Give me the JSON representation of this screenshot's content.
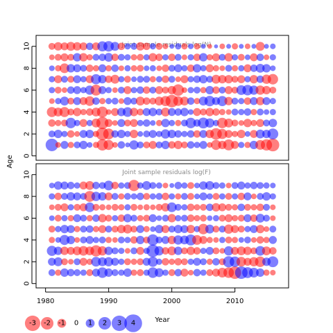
{
  "chart_data": {
    "type": "scatter",
    "style": "bubble",
    "ylabel": "Age",
    "xlabel": "Year",
    "x_ticks": [
      1980,
      1990,
      2000,
      2010
    ],
    "y_ticks": [
      0,
      2,
      4,
      6,
      8,
      10
    ],
    "colors": {
      "positive": "#0000ff",
      "negative": "#ff0000"
    },
    "panels": [
      {
        "title": "Joint sample residuals log(N)",
        "years": [
          1981,
          2016
        ],
        "ages": [
          1,
          10
        ],
        "xlim": [
          1978.5,
          2018.5
        ],
        "ylim": [
          -0.4,
          11
        ],
        "description_of_values": "residual per year (rows=age 1..10, columns=year 1981..2016); sign gives colour, magnitude gives size",
        "residuals": [
          [
            2.0,
            -0.4,
            0.8,
            -0.5,
            0.6,
            0.9,
            0.4,
            -0.5,
            -1.6,
            -1.3,
            -0.4,
            0.7,
            0.3,
            1.1,
            0.6,
            -0.6,
            -0.8,
            0.6,
            0.9,
            -0.7,
            -0.9,
            -0.6,
            0.7,
            0.5,
            0.8,
            -0.4,
            -1.3,
            -0.9,
            -1.5,
            -0.8,
            0.5,
            -0.5,
            0.9,
            -1.2,
            -1.6,
            -2.1
          ],
          [
            0.6,
            0.9,
            0.5,
            -0.7,
            -0.4,
            0.8,
            0.9,
            -0.5,
            -2.0,
            -1.5,
            0.7,
            0.9,
            0.5,
            -0.9,
            0.4,
            0.6,
            0.8,
            0.5,
            1.1,
            0.9,
            0.7,
            0.5,
            0.7,
            -0.7,
            0.8,
            -0.9,
            -1.7,
            -1.3,
            -0.8,
            -0.5,
            -0.9,
            0.4,
            -0.8,
            1.0,
            0.9,
            1.5
          ],
          [
            -0.7,
            -0.5,
            -0.6,
            1.4,
            0.5,
            -0.8,
            0.5,
            -1.0,
            -1.9,
            -0.8,
            -0.4,
            0.8,
            -0.6,
            -0.8,
            0.5,
            0.7,
            0.4,
            -0.5,
            0.9,
            0.5,
            -0.5,
            0.6,
            1.4,
            0.7,
            1.5,
            1.1,
            0.5,
            -1.4,
            -1.0,
            -0.6,
            -0.4,
            -0.9,
            -0.5,
            -0.8,
            0.6,
            0.9
          ],
          [
            -1.3,
            -1.0,
            -1.3,
            -0.6,
            -0.9,
            -0.5,
            -0.7,
            -1.0,
            -1.5,
            -0.4,
            -0.8,
            0.9,
            1.2,
            -0.9,
            -0.6,
            0.8,
            0.9,
            0.6,
            -1.0,
            0.8,
            0.7,
            0.9,
            0.4,
            -0.8,
            -0.6,
            -0.9,
            -0.7,
            -0.5,
            -0.4,
            0.6,
            0.5,
            0.7,
            -0.5,
            0.6,
            0.4,
            0.5
          ],
          [
            -0.4,
            0.5,
            1.0,
            -0.6,
            0.8,
            -0.8,
            -1.2,
            0.7,
            -0.5,
            0.5,
            0.6,
            -0.4,
            0.8,
            0.6,
            -1.0,
            -0.7,
            -0.6,
            -1.0,
            -1.3,
            -2.0,
            -1.2,
            -1.0,
            0.7,
            -0.5,
            1.0,
            1.4,
            0.8,
            1.3,
            -0.9,
            0.6,
            0.5,
            -0.7,
            0.8,
            -0.9,
            0.8,
            0.5
          ],
          [
            0.5,
            -0.6,
            -0.4,
            0.7,
            0.8,
            0.5,
            1.1,
            -1.5,
            0.8,
            0.5,
            -0.4,
            0.6,
            -0.8,
            0.5,
            0.7,
            -0.7,
            0.6,
            -0.8,
            -0.6,
            -0.9,
            -1.7,
            -0.4,
            0.5,
            0.6,
            -0.5,
            0.9,
            -0.7,
            0.6,
            -0.8,
            -0.6,
            1.2,
            1.4,
            1.1,
            -1.1,
            -0.9,
            -0.6
          ],
          [
            0.5,
            -0.8,
            0.6,
            -0.6,
            0.8,
            0.5,
            -0.8,
            1.3,
            0.9,
            -0.7,
            -1.0,
            0.5,
            -0.6,
            0.4,
            0.6,
            0.6,
            -0.5,
            0.5,
            -0.7,
            0.6,
            -0.4,
            -0.8,
            0.5,
            0.7,
            0.9,
            0.6,
            -1.0,
            -0.9,
            -0.9,
            -0.6,
            -0.8,
            0.5,
            -0.9,
            0.7,
            -1.1,
            -1.4
          ],
          [
            0.4,
            -0.5,
            -1.2,
            0.9,
            0.8,
            0.6,
            -0.7,
            -0.5,
            0.8,
            -0.5,
            0.7,
            -0.4,
            0.5,
            -0.5,
            -0.6,
            0.4,
            0.5,
            -0.4,
            -0.7,
            0.6,
            0.8,
            0.5,
            -0.7,
            0.9,
            0.5,
            -0.8,
            -0.5,
            -0.4,
            0.6,
            -0.5,
            0.5,
            -0.8,
            0.7,
            1.0,
            0.9,
            0.4
          ],
          [
            -0.4,
            -0.6,
            -0.8,
            -0.6,
            0.9,
            -0.9,
            -0.5,
            0.6,
            0.7,
            1.0,
            -0.7,
            0.6,
            0.5,
            -0.5,
            -0.6,
            0.5,
            -0.9,
            -0.7,
            0.5,
            -0.7,
            0.6,
            -0.4,
            0.5,
            -0.7,
            0.9,
            -0.5,
            -0.8,
            0.6,
            -0.9,
            0.5,
            -0.6,
            0.4,
            -0.8,
            0.7,
            -0.4,
            0.5
          ],
          [
            -0.6,
            -0.9,
            -0.8,
            -1.0,
            -0.9,
            -0.8,
            0.7,
            -0.8,
            1.3,
            1.4,
            1.0,
            -0.7,
            0.5,
            0.6,
            -0.9,
            -0.7,
            0.5,
            -0.6,
            -0.4,
            0.3,
            0.5,
            -0.5,
            0.4,
            -0.5,
            0.3,
            -0.3,
            0.2,
            -0.4,
            0.3,
            -0.5,
            0.3,
            -0.4,
            0.3,
            -1.0,
            0.3,
            0.4
          ]
        ]
      },
      {
        "title": "Joint sample residuals log(F)",
        "years": [
          1981,
          2016
        ],
        "ages": [
          1,
          9
        ],
        "xlim": [
          1978.5,
          2018.5
        ],
        "ylim": [
          -0.4,
          11
        ],
        "description_of_values": "residual per year (rows=age 1..9, columns=year 1981..2016); sign gives colour, magnitude gives size",
        "residuals": [
          [
            0.6,
            -0.5,
            0.9,
            0.7,
            0.6,
            0.5,
            -0.6,
            0.8,
            1.4,
            0.9,
            0.6,
            0.5,
            0.9,
            -0.5,
            -0.6,
            0.5,
            1.4,
            1.0,
            0.5,
            -0.6,
            0.7,
            -0.8,
            -0.4,
            0.7,
            0.5,
            -0.6,
            -0.8,
            -1.2,
            -1.4,
            -2.0,
            2.0,
            1.5,
            1.2,
            0.9,
            -0.5,
            -0.4
          ],
          [
            0.8,
            1.0,
            -0.6,
            -0.4,
            0.6,
            -0.8,
            -0.5,
            1.2,
            1.0,
            1.1,
            0.8,
            0.5,
            -0.6,
            -0.5,
            -0.6,
            0.8,
            1.3,
            0.5,
            -0.7,
            -0.5,
            -0.7,
            -0.6,
            0.5,
            0.8,
            0.6,
            -0.5,
            0.7,
            -0.6,
            1.6,
            1.4,
            -1.2,
            -0.8,
            -1.1,
            -1.4,
            0.9,
            1.5
          ],
          [
            1.3,
            0.9,
            -0.9,
            -0.8,
            -1.0,
            -1.2,
            -1.0,
            -1.6,
            -1.1,
            0.9,
            0.6,
            0.5,
            -0.4,
            0.6,
            -0.8,
            0.5,
            2.0,
            1.1,
            -0.7,
            -1.0,
            0.9,
            -0.6,
            -0.9,
            -0.7,
            0.5,
            0.8,
            -0.6,
            -0.4,
            1.1,
            -0.8,
            -1.0,
            -0.9,
            -0.6,
            1.2,
            -1.0,
            -0.7
          ],
          [
            -0.5,
            0.4,
            1.3,
            0.9,
            -0.4,
            0.6,
            0.8,
            0.5,
            0.6,
            -0.5,
            -0.4,
            0.6,
            0.5,
            -0.7,
            0.9,
            -0.6,
            1.6,
            0.6,
            0.8,
            -0.9,
            1.1,
            1.0,
            1.5,
            -1.2,
            -0.8,
            -0.5,
            -0.4,
            0.5,
            -0.6,
            -0.5,
            0.4,
            0.6,
            -0.4,
            -0.7,
            -0.5,
            0.8
          ],
          [
            -0.6,
            0.5,
            0.9,
            0.8,
            -0.5,
            0.6,
            0.7,
            -0.5,
            -0.8,
            0.6,
            -0.6,
            -0.9,
            -1.0,
            -0.6,
            0.8,
            -0.5,
            0.4,
            0.9,
            -0.8,
            0.6,
            0.9,
            0.8,
            -0.9,
            0.5,
            -1.4,
            1.0,
            -0.6,
            0.6,
            -1.1,
            -0.8,
            -0.6,
            0.5,
            0.8,
            -0.9,
            -0.4,
            0.6
          ],
          [
            0.4,
            -0.6,
            0.5,
            -0.5,
            0.8,
            0.6,
            -0.5,
            0.7,
            -0.9,
            -0.6,
            0.5,
            -0.7,
            0.9,
            0.6,
            -0.5,
            -0.6,
            0.8,
            0.4,
            0.6,
            -0.9,
            0.5,
            0.6,
            -0.7,
            -0.5,
            -0.6,
            0.4,
            0.5,
            -0.6,
            -0.8,
            -0.5,
            -0.6,
            0.8,
            -0.7,
            1.0,
            0.6,
            -0.4
          ],
          [
            -0.4,
            -0.6,
            -0.8,
            0.5,
            -0.6,
            -0.8,
            1.2,
            -0.6,
            -0.5,
            -0.4,
            -0.6,
            -0.5,
            0.5,
            -0.6,
            -0.4,
            -0.5,
            -0.4,
            -0.6,
            -0.9,
            1.2,
            0.6,
            0.5,
            -0.7,
            -0.5,
            -0.6,
            0.7,
            -0.9,
            -0.8,
            -0.6,
            -0.5,
            0.7,
            -0.6,
            -0.5,
            -0.7,
            0.6,
            -0.4
          ],
          [
            0.5,
            -0.7,
            0.6,
            0.9,
            0.8,
            0.6,
            -1.5,
            1.1,
            0.9,
            -0.8,
            0.6,
            -0.5,
            0.6,
            0.5,
            0.7,
            -0.6,
            0.5,
            0.6,
            -0.7,
            0.5,
            -0.5,
            0.6,
            -0.6,
            0.4,
            0.8,
            0.5,
            -0.6,
            0.5,
            -0.6,
            0.5,
            -0.7,
            0.8,
            -0.4,
            0.6,
            0.9,
            0.5
          ],
          [
            0.4,
            0.9,
            0.8,
            0.7,
            0.5,
            -0.8,
            -1.0,
            0.7,
            0.6,
            1.2,
            -0.7,
            0.5,
            0.6,
            -1.6,
            0.5,
            1.0,
            0.6,
            0.5,
            -0.4,
            0.3,
            0.7,
            0.5,
            -0.6,
            0.4,
            0.9,
            1.0,
            0.6,
            0.5,
            -0.4,
            0.6,
            0.8,
            0.5,
            0.7,
            0.6,
            0.5,
            0.4
          ]
        ]
      }
    ],
    "legend": {
      "position": "bottom-left",
      "entries": [
        {
          "label": "-3",
          "value": -3
        },
        {
          "label": "-2",
          "value": -2
        },
        {
          "label": "-1",
          "value": -1
        },
        {
          "label": "0",
          "value": 0
        },
        {
          "label": "1",
          "value": 1
        },
        {
          "label": "2",
          "value": 2
        },
        {
          "label": "3",
          "value": 3
        },
        {
          "label": "4",
          "value": 4
        }
      ]
    }
  }
}
